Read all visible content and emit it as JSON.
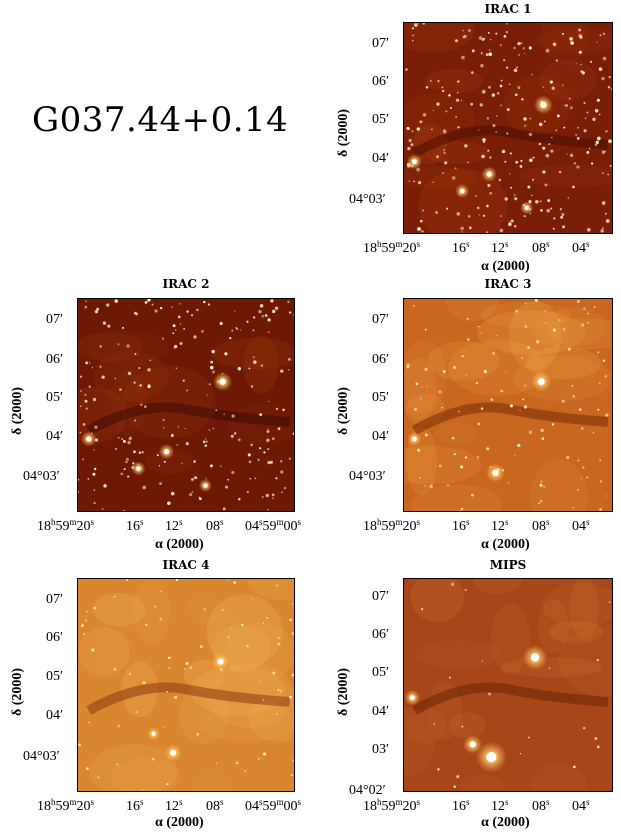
{
  "title": "G037.44+0.14",
  "panels": [
    {
      "id": "irac1",
      "name": "IRAC 1",
      "yticks": [
        "07′",
        "06′",
        "05′",
        "04′",
        "04°03′"
      ],
      "xticks": [
        "18h59m20s",
        "16s",
        "12s",
        "08s",
        "04s"
      ],
      "ylabel": "δ (2000)",
      "xlabel": "α (2000)"
    },
    {
      "id": "irac2",
      "name": "IRAC 2",
      "yticks": [
        "07′",
        "06′",
        "05′",
        "04′",
        "04°03′"
      ],
      "xticks": [
        "18h59m20s",
        "16s",
        "12s",
        "08s",
        "04s59m00s"
      ],
      "ylabel": "δ (2000)",
      "xlabel": "α (2000)"
    },
    {
      "id": "irac3",
      "name": "IRAC 3",
      "yticks": [
        "07′",
        "06′",
        "05′",
        "04′",
        "04°03′"
      ],
      "xticks": [
        "18h59m20s",
        "16s",
        "12s",
        "08s",
        "04s"
      ],
      "ylabel": "δ (2000)",
      "xlabel": "α (2000)"
    },
    {
      "id": "irac4",
      "name": "IRAC 4",
      "yticks": [
        "07′",
        "06′",
        "05′",
        "04′",
        "04°03′"
      ],
      "xticks": [
        "18h59m20s",
        "16s",
        "12s",
        "08s",
        "04s59m00s"
      ],
      "ylabel": "δ (2000)",
      "xlabel": "α (2000)"
    },
    {
      "id": "mips",
      "name": "MIPS",
      "yticks": [
        "07′",
        "06′",
        "05′",
        "04′",
        "03′",
        "04°02′"
      ],
      "xticks": [
        "18h59m20s",
        "16s",
        "12s",
        "08s",
        "04s"
      ],
      "ylabel": "δ (2000)",
      "xlabel": "α (2000)"
    }
  ],
  "colors": {
    "irac1_bg": "#7a1e08",
    "irac2_bg": "#6e1906",
    "irac3_bg": "#c9661f",
    "irac4_bg": "#d9862e",
    "mips_bg": "#a8461a",
    "star": "#fff6c8"
  }
}
